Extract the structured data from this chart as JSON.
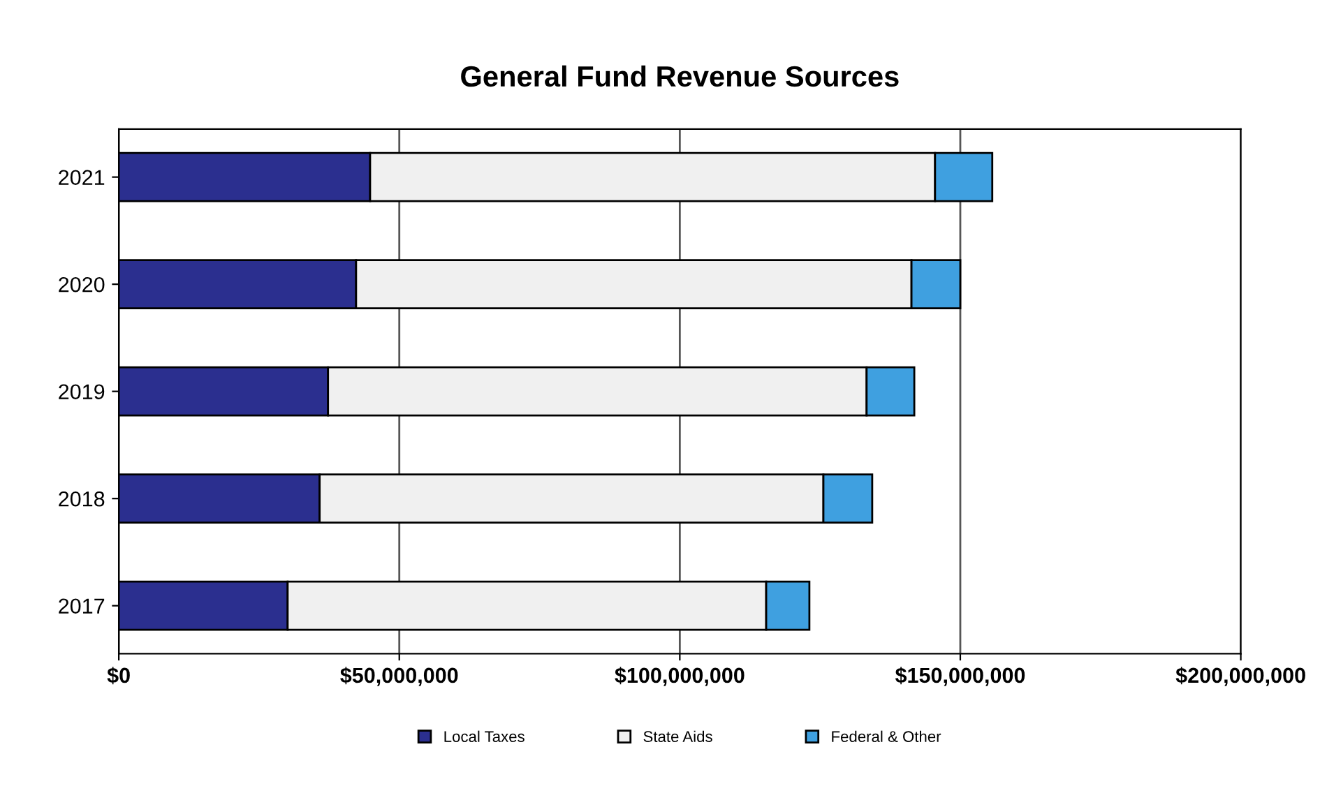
{
  "chart_data": {
    "type": "bar",
    "title": "General Fund Revenue Sources",
    "orientation": "horizontal",
    "stacked": true,
    "categories": [
      "2021",
      "2020",
      "2019",
      "2018",
      "2017"
    ],
    "series": [
      {
        "name": "Local Taxes",
        "color": "#2b2f8f",
        "values": [
          44800000,
          42300000,
          37300000,
          35800000,
          30100000
        ]
      },
      {
        "name": "State Aids",
        "color": "#f0f0f0",
        "values": [
          100700000,
          99000000,
          96000000,
          89800000,
          85300000
        ]
      },
      {
        "name": "Federal & Other",
        "color": "#3fa0e0",
        "values": [
          10200000,
          8700000,
          8500000,
          8700000,
          7700000
        ]
      }
    ],
    "xlim": [
      0,
      200000000
    ],
    "xticks": [
      {
        "value": 0,
        "label": "$0"
      },
      {
        "value": 50000000,
        "label": "$50,000,000"
      },
      {
        "value": 100000000,
        "label": "$100,000,000"
      },
      {
        "value": 150000000,
        "label": "$150,000,000"
      },
      {
        "value": 200000000,
        "label": "$200,000,000"
      }
    ],
    "grid": "x",
    "legend": "bottom"
  }
}
